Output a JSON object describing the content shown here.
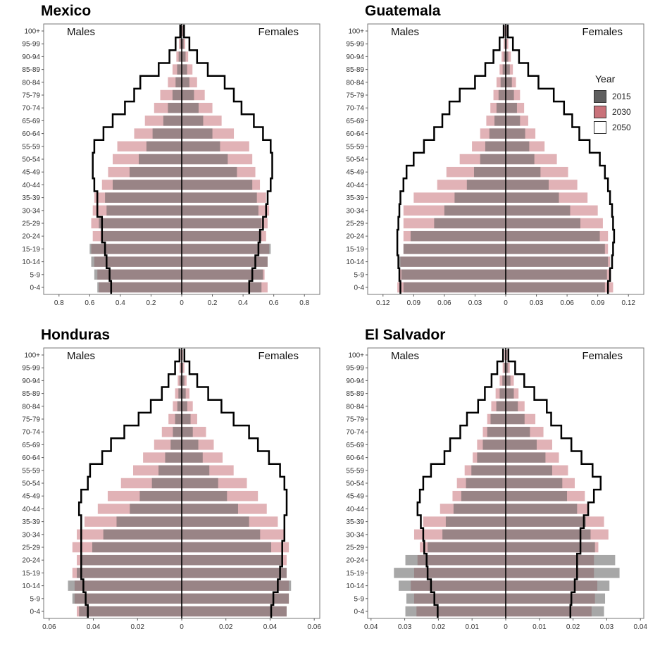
{
  "legend": {
    "title": "Year",
    "items": [
      {
        "label": "2015",
        "color": "#5f5f5f"
      },
      {
        "label": "2030",
        "color": "#c9727a"
      },
      {
        "label": "2050",
        "color": "#ffffff"
      }
    ]
  },
  "colors": {
    "bar_2015": "#5f5f5f",
    "bar_2030": "#c9727a",
    "outline_2050": "#000000",
    "panel_border": "#777777"
  },
  "chart_data": [
    {
      "type": "bar",
      "title": "Mexico",
      "left_label": "Males",
      "right_label": "Females",
      "categories": [
        "100+",
        "95-99",
        "90-94",
        "85-89",
        "80-84",
        "75-79",
        "70-74",
        "65-69",
        "60-64",
        "55-59",
        "50-54",
        "45-49",
        "40-44",
        "35-39",
        "30-34",
        "25-29",
        "20-24",
        "15-19",
        "10-14",
        "5-9",
        "0-4"
      ],
      "xlim": [
        -0.9,
        0.9
      ],
      "xticks": [
        -0.8,
        -0.6,
        -0.4,
        -0.2,
        0,
        0.2,
        0.4,
        0.6,
        0.8
      ],
      "xtick_labels": [
        "0.8",
        "0.6",
        "0.4",
        "0.2",
        "0",
        "0.2",
        "0.4",
        "0.6",
        "0.8"
      ],
      "series": [
        {
          "name": "2015",
          "males": [
            0.004,
            0.01,
            0.02,
            0.03,
            0.04,
            0.06,
            0.09,
            0.12,
            0.19,
            0.23,
            0.28,
            0.34,
            0.45,
            0.5,
            0.49,
            0.54,
            0.52,
            0.6,
            0.59,
            0.57,
            0.55
          ],
          "females": [
            0.005,
            0.013,
            0.025,
            0.035,
            0.05,
            0.08,
            0.11,
            0.14,
            0.2,
            0.25,
            0.3,
            0.36,
            0.46,
            0.49,
            0.5,
            0.52,
            0.52,
            0.58,
            0.56,
            0.53,
            0.52
          ]
        },
        {
          "name": "2030",
          "males": [
            0.007,
            0.018,
            0.035,
            0.06,
            0.09,
            0.14,
            0.18,
            0.24,
            0.31,
            0.42,
            0.45,
            0.48,
            0.52,
            0.57,
            0.58,
            0.59,
            0.58,
            0.59,
            0.57,
            0.55,
            0.54
          ],
          "females": [
            0.009,
            0.023,
            0.042,
            0.07,
            0.1,
            0.15,
            0.2,
            0.26,
            0.34,
            0.44,
            0.46,
            0.48,
            0.51,
            0.55,
            0.57,
            0.56,
            0.55,
            0.57,
            0.56,
            0.54,
            0.56
          ]
        },
        {
          "name": "2050",
          "males": [
            0.01,
            0.04,
            0.08,
            0.15,
            0.27,
            0.31,
            0.37,
            0.45,
            0.51,
            0.57,
            0.58,
            0.58,
            0.57,
            0.55,
            0.55,
            0.52,
            0.52,
            0.5,
            0.49,
            0.47,
            0.46
          ],
          "females": [
            0.015,
            0.05,
            0.1,
            0.17,
            0.28,
            0.34,
            0.39,
            0.47,
            0.53,
            0.58,
            0.59,
            0.59,
            0.58,
            0.56,
            0.55,
            0.53,
            0.51,
            0.5,
            0.48,
            0.46,
            0.44
          ]
        }
      ]
    },
    {
      "type": "bar",
      "title": "Guatemala",
      "left_label": "Males",
      "right_label": "Females",
      "categories": [
        "100+",
        "95-99",
        "90-94",
        "85-89",
        "80-84",
        "75-79",
        "70-74",
        "65-69",
        "60-64",
        "55-59",
        "50-54",
        "45-49",
        "40-44",
        "35-39",
        "30-34",
        "25-29",
        "20-24",
        "15-19",
        "10-14",
        "5-9",
        "0-4"
      ],
      "xlim": [
        -0.135,
        0.135
      ],
      "xticks": [
        -0.12,
        -0.09,
        -0.06,
        -0.03,
        0,
        0.03,
        0.06,
        0.09,
        0.12
      ],
      "xtick_labels": [
        "0.12",
        "0.09",
        "0.06",
        "0.03",
        "0",
        "0.03",
        "0.06",
        "0.09",
        "0.12"
      ],
      "series": [
        {
          "name": "2015",
          "males": [
            0.0005,
            0.001,
            0.002,
            0.003,
            0.005,
            0.007,
            0.009,
            0.011,
            0.016,
            0.02,
            0.025,
            0.031,
            0.038,
            0.05,
            0.06,
            0.07,
            0.093,
            0.1,
            0.104,
            0.102,
            0.1
          ],
          "females": [
            0.0006,
            0.0012,
            0.0025,
            0.004,
            0.006,
            0.008,
            0.011,
            0.014,
            0.019,
            0.023,
            0.028,
            0.034,
            0.042,
            0.052,
            0.063,
            0.073,
            0.092,
            0.097,
            0.1,
            0.099,
            0.097
          ]
        },
        {
          "name": "2030",
          "males": [
            0.001,
            0.002,
            0.004,
            0.006,
            0.009,
            0.012,
            0.015,
            0.019,
            0.025,
            0.033,
            0.045,
            0.058,
            0.067,
            0.09,
            0.1,
            0.1,
            0.1,
            0.1,
            0.103,
            0.104,
            0.106
          ],
          "females": [
            0.001,
            0.0025,
            0.005,
            0.007,
            0.01,
            0.014,
            0.018,
            0.022,
            0.029,
            0.038,
            0.05,
            0.061,
            0.07,
            0.08,
            0.09,
            0.095,
            0.1,
            0.1,
            0.102,
            0.103,
            0.105
          ]
        },
        {
          "name": "2050",
          "males": [
            0.002,
            0.006,
            0.012,
            0.02,
            0.03,
            0.045,
            0.055,
            0.062,
            0.07,
            0.08,
            0.09,
            0.097,
            0.1,
            0.103,
            0.104,
            0.105,
            0.106,
            0.106,
            0.105,
            0.104,
            0.103
          ],
          "females": [
            0.002,
            0.007,
            0.013,
            0.022,
            0.032,
            0.047,
            0.057,
            0.065,
            0.072,
            0.082,
            0.092,
            0.097,
            0.1,
            0.102,
            0.104,
            0.105,
            0.106,
            0.105,
            0.104,
            0.102,
            0.1
          ]
        }
      ]
    },
    {
      "type": "bar",
      "title": "Honduras",
      "left_label": "Males",
      "right_label": "Females",
      "categories": [
        "100+",
        "95-99",
        "90-94",
        "85-89",
        "80-84",
        "75-79",
        "70-74",
        "65-69",
        "60-64",
        "55-59",
        "50-54",
        "45-49",
        "40-44",
        "35-39",
        "30-34",
        "25-29",
        "20-24",
        "15-19",
        "10-14",
        "5-9",
        "0-4"
      ],
      "xlim": [
        -0.0625,
        0.0625
      ],
      "xticks": [
        -0.06,
        -0.04,
        -0.02,
        0,
        0.02,
        0.04,
        0.06
      ],
      "xtick_labels": [
        "0.06",
        "0.04",
        "0.02",
        "0",
        "0.02",
        "0.04",
        "0.06"
      ],
      "series": [
        {
          "name": "2015",
          "males": [
            0.0002,
            0.0005,
            0.001,
            0.0015,
            0.002,
            0.003,
            0.004,
            0.005,
            0.0075,
            0.0105,
            0.0135,
            0.019,
            0.0235,
            0.0295,
            0.0355,
            0.0405,
            0.0455,
            0.0475,
            0.0515,
            0.0495,
            0.0465
          ],
          "females": [
            0.0003,
            0.0006,
            0.0012,
            0.0018,
            0.0025,
            0.004,
            0.005,
            0.0075,
            0.0095,
            0.0125,
            0.0165,
            0.0205,
            0.0255,
            0.0305,
            0.0355,
            0.0405,
            0.0455,
            0.0475,
            0.0495,
            0.0485,
            0.0475
          ]
        },
        {
          "name": "2030",
          "males": [
            0.0005,
            0.001,
            0.0018,
            0.003,
            0.004,
            0.006,
            0.009,
            0.0125,
            0.0175,
            0.022,
            0.0275,
            0.0335,
            0.038,
            0.044,
            0.0475,
            0.0495,
            0.0475,
            0.0495,
            0.0485,
            0.0485,
            0.0475
          ],
          "females": [
            0.0006,
            0.0012,
            0.0022,
            0.0035,
            0.005,
            0.007,
            0.011,
            0.0145,
            0.0185,
            0.0235,
            0.0295,
            0.0345,
            0.0385,
            0.0435,
            0.0465,
            0.0485,
            0.0475,
            0.0475,
            0.0485,
            0.0485,
            0.0475
          ]
        },
        {
          "name": "2050",
          "males": [
            0.001,
            0.003,
            0.006,
            0.009,
            0.014,
            0.0195,
            0.026,
            0.032,
            0.036,
            0.0415,
            0.0425,
            0.0455,
            0.0465,
            0.0455,
            0.0455,
            0.0455,
            0.0455,
            0.0455,
            0.0445,
            0.0435,
            0.0425
          ],
          "females": [
            0.0012,
            0.0035,
            0.007,
            0.012,
            0.018,
            0.0235,
            0.0305,
            0.0345,
            0.0395,
            0.0445,
            0.0465,
            0.0475,
            0.0475,
            0.0465,
            0.0465,
            0.0455,
            0.0455,
            0.0445,
            0.0435,
            0.0415,
            0.0405
          ]
        }
      ]
    },
    {
      "type": "bar",
      "title": "El Salvador",
      "left_label": "Males",
      "right_label": "Females",
      "categories": [
        "100+",
        "95-99",
        "90-94",
        "85-89",
        "80-84",
        "75-79",
        "70-74",
        "65-69",
        "60-64",
        "55-59",
        "50-54",
        "45-49",
        "40-44",
        "35-39",
        "30-34",
        "25-29",
        "20-24",
        "15-19",
        "10-14",
        "5-9",
        "0-4"
      ],
      "xlim": [
        -0.041,
        0.041
      ],
      "xticks": [
        -0.04,
        -0.03,
        -0.02,
        -0.01,
        0,
        0.01,
        0.02,
        0.03,
        0.04
      ],
      "xtick_labels": [
        "0.04",
        "0.03",
        "0.02",
        "0.01",
        "0",
        "0.01",
        "0.02",
        "0.03",
        "0.04"
      ],
      "series": [
        {
          "name": "2015",
          "males": [
            0.0002,
            0.0005,
            0.001,
            0.0018,
            0.0028,
            0.0045,
            0.0055,
            0.0068,
            0.0085,
            0.0102,
            0.0118,
            0.0132,
            0.0155,
            0.0178,
            0.0188,
            0.0232,
            0.0298,
            0.0332,
            0.0318,
            0.0295,
            0.0298
          ],
          "females": [
            0.0003,
            0.0007,
            0.0014,
            0.0024,
            0.0036,
            0.0056,
            0.0072,
            0.0092,
            0.0118,
            0.0138,
            0.0168,
            0.0182,
            0.0212,
            0.0238,
            0.0252,
            0.0265,
            0.0325,
            0.0338,
            0.0308,
            0.0295,
            0.0292
          ]
        },
        {
          "name": "2030",
          "males": [
            0.0004,
            0.0009,
            0.0018,
            0.003,
            0.0043,
            0.0055,
            0.0068,
            0.0085,
            0.0098,
            0.0122,
            0.0145,
            0.0158,
            0.0195,
            0.0245,
            0.0272,
            0.0255,
            0.0262,
            0.0272,
            0.0282,
            0.0272,
            0.0265
          ],
          "females": [
            0.0005,
            0.0012,
            0.0024,
            0.0038,
            0.0056,
            0.0088,
            0.0112,
            0.0138,
            0.0158,
            0.0185,
            0.0205,
            0.0235,
            0.0245,
            0.0292,
            0.0305,
            0.0275,
            0.0262,
            0.0262,
            0.0272,
            0.0265,
            0.0255
          ]
        },
        {
          "name": "2050",
          "males": [
            0.0008,
            0.0025,
            0.0042,
            0.0062,
            0.0082,
            0.0115,
            0.0135,
            0.0165,
            0.0182,
            0.0222,
            0.0245,
            0.0255,
            0.0262,
            0.0252,
            0.0245,
            0.0242,
            0.0235,
            0.0232,
            0.0222,
            0.0212,
            0.0202
          ],
          "females": [
            0.0008,
            0.0028,
            0.0055,
            0.0085,
            0.0122,
            0.0135,
            0.0165,
            0.0195,
            0.0225,
            0.0258,
            0.0282,
            0.0262,
            0.0245,
            0.0232,
            0.0222,
            0.0222,
            0.0212,
            0.0212,
            0.0205,
            0.0195,
            0.0192
          ]
        }
      ]
    }
  ]
}
